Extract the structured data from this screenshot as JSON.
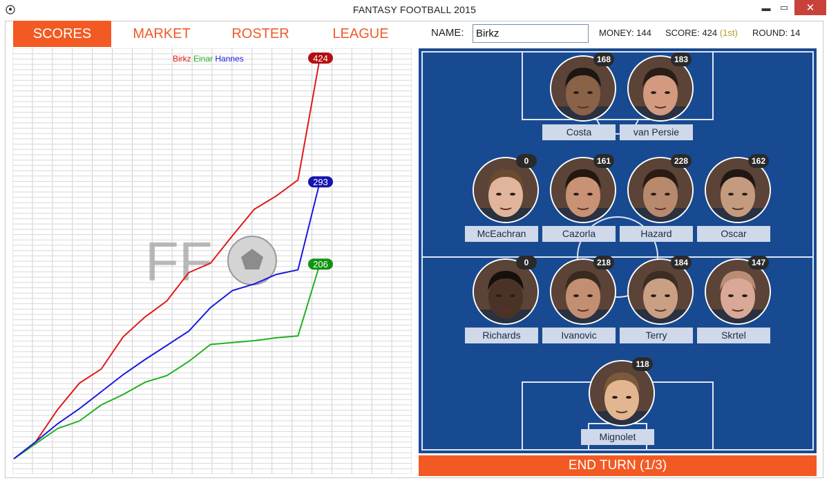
{
  "window": {
    "title": "FANTASY FOOTBALL 2015",
    "minimize": "▬",
    "maximize": "▭",
    "close": "✕"
  },
  "tabs": [
    "SCORES",
    "MARKET",
    "ROSTER",
    "LEAGUE"
  ],
  "header": {
    "name_label": "NAME:",
    "name_value": "Birkz",
    "money": "MONEY: 144",
    "score": "SCORE: 424",
    "rank": "(1st)",
    "round": "ROUND: 14"
  },
  "chart_data": {
    "type": "line",
    "x": [
      0,
      1,
      2,
      3,
      4,
      5,
      6,
      7,
      8,
      9,
      10,
      11,
      12,
      13,
      14
    ],
    "series": [
      {
        "name": "Birkz",
        "color": "#e01818",
        "values": [
          0,
          18,
          52,
          80,
          95,
          129,
          150,
          167,
          197,
          207,
          236,
          264,
          278,
          295,
          424
        ],
        "end_label": "424",
        "label_bg": "#b30f0f"
      },
      {
        "name": "Einar",
        "color": "#20b020",
        "values": [
          0,
          16,
          32,
          40,
          57,
          68,
          81,
          88,
          103,
          121,
          123,
          125,
          128,
          130,
          206
        ],
        "end_label": "206",
        "label_bg": "#129412"
      },
      {
        "name": "Hannes",
        "color": "#1818e0",
        "values": [
          0,
          18,
          37,
          53,
          71,
          89,
          105,
          120,
          135,
          160,
          178,
          185,
          195,
          200,
          293
        ],
        "end_label": "293",
        "label_bg": "#1414b0"
      }
    ],
    "watermark": "FF",
    "grid": true
  },
  "players": [
    {
      "name": "Costa",
      "points": "168",
      "tone": "#8a6248",
      "hair": "#1d1713"
    },
    {
      "name": "van Persie",
      "points": "183",
      "tone": "#d39a80",
      "hair": "#2a1d17"
    },
    {
      "name": "McEachran",
      "points": "0",
      "tone": "#e0b59b",
      "hair": "#6b4a32"
    },
    {
      "name": "Cazorla",
      "points": "161",
      "tone": "#c99275",
      "hair": "#241711"
    },
    {
      "name": "Hazard",
      "points": "228",
      "tone": "#b88a6d",
      "hair": "#2b1b12"
    },
    {
      "name": "Oscar",
      "points": "162",
      "tone": "#c49b7f",
      "hair": "#1f1712"
    },
    {
      "name": "Richards",
      "points": "0",
      "tone": "#4a3326",
      "hair": "#14100d"
    },
    {
      "name": "Ivanovic",
      "points": "218",
      "tone": "#c28f73",
      "hair": "#3a2a1e"
    },
    {
      "name": "Terry",
      "points": "184",
      "tone": "#caa084",
      "hair": "#3d2d22"
    },
    {
      "name": "Skrtel",
      "points": "147",
      "tone": "#d9a896",
      "hair": "#b98d75"
    },
    {
      "name": "Mignolet",
      "points": "118",
      "tone": "#e2b691",
      "hair": "#7a5a3a"
    }
  ],
  "end_turn": "END TURN (1/3)"
}
